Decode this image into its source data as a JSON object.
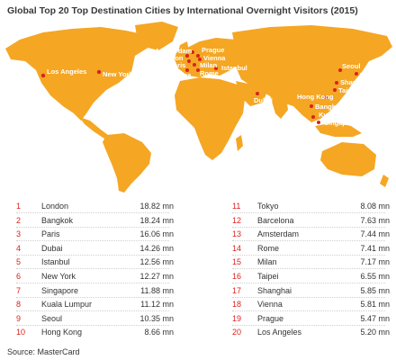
{
  "title": "Global Top 20 Top Destination Cities by International Overnight Visitors (2015)",
  "source": "Source: MasterCard",
  "colors": {
    "land": "#f5a623",
    "accent": "#d8231f",
    "label": "#ffffff"
  },
  "map_labels": {
    "los_angeles": "Los Angeles",
    "new_york": "New York",
    "amsterdam": "Amsterdam",
    "london": "London",
    "paris": "Paris",
    "barcelona": "Barcelona",
    "prague": "Prague",
    "vienna": "Vienna",
    "milan": "Milan",
    "rome": "Rome",
    "istanbul": "Istanbul",
    "dubai": "Dubai",
    "seoul": "Seoul",
    "tokyo": "Tokyo",
    "shanghai": "Shanghai",
    "taipei": "Taipei",
    "hong_kong": "Hong Kong",
    "bangkok": "Bangkok",
    "kuala_lumpur": "Kuala Lumpur",
    "singapore": "Singapore"
  },
  "rankings": [
    {
      "rank": "1",
      "city": "London",
      "value": "18.82 mn"
    },
    {
      "rank": "2",
      "city": "Bangkok",
      "value": "18.24 mn"
    },
    {
      "rank": "3",
      "city": "Paris",
      "value": "16.06 mn"
    },
    {
      "rank": "4",
      "city": "Dubai",
      "value": "14.26 mn"
    },
    {
      "rank": "5",
      "city": "Istanbul",
      "value": "12.56 mn"
    },
    {
      "rank": "6",
      "city": "New York",
      "value": "12.27 mn"
    },
    {
      "rank": "7",
      "city": "Singapore",
      "value": "11.88 mn"
    },
    {
      "rank": "8",
      "city": "Kuala Lumpur",
      "value": "11.12 mn"
    },
    {
      "rank": "9",
      "city": "Seoul",
      "value": "10.35 mn"
    },
    {
      "rank": "10",
      "city": "Hong Kong",
      "value": "8.66 mn"
    },
    {
      "rank": "11",
      "city": "Tokyo",
      "value": "8.08 mn"
    },
    {
      "rank": "12",
      "city": "Barcelona",
      "value": "7.63 mn"
    },
    {
      "rank": "13",
      "city": "Amsterdam",
      "value": "7.44 mn"
    },
    {
      "rank": "14",
      "city": "Rome",
      "value": "7.41 mn"
    },
    {
      "rank": "15",
      "city": "Milan",
      "value": "7.17 mn"
    },
    {
      "rank": "16",
      "city": "Taipei",
      "value": "6.55 mn"
    },
    {
      "rank": "17",
      "city": "Shanghai",
      "value": "5.85 mn"
    },
    {
      "rank": "18",
      "city": "Vienna",
      "value": "5.81 mn"
    },
    {
      "rank": "19",
      "city": "Prague",
      "value": "5.47 mn"
    },
    {
      "rank": "20",
      "city": "Los Angeles",
      "value": "5.20 mn"
    }
  ]
}
